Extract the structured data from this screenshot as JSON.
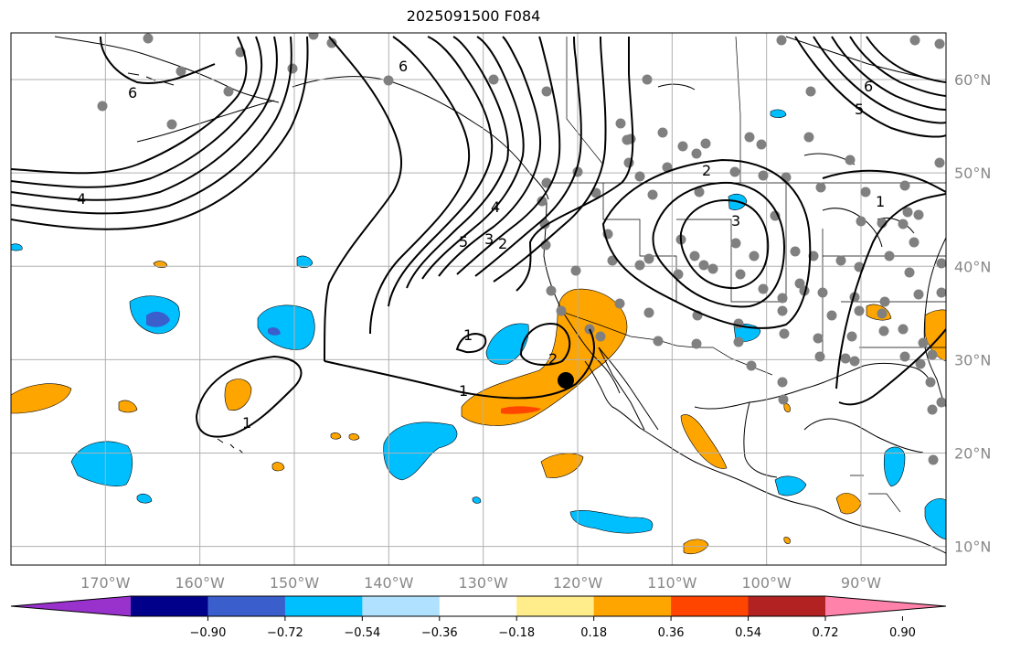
{
  "title": "2025091500 F084",
  "map": {
    "projection": "PlateCarree",
    "lon_range": [
      -180,
      -81
    ],
    "lat_range": [
      8,
      65
    ],
    "lat_ticks": [
      "10°N",
      "20°N",
      "30°N",
      "40°N",
      "50°N",
      "60°N"
    ],
    "lon_ticks": [
      "170°W",
      "160°W",
      "150°W",
      "140°W",
      "130°W",
      "120°W",
      "110°W",
      "100°W",
      "90°W"
    ],
    "grid": true,
    "contour_labels": [
      "6",
      "6",
      "4",
      "4",
      "5",
      "3",
      "2",
      "1",
      "1",
      "2",
      "1",
      "2",
      "3",
      "1",
      "6",
      "5"
    ],
    "marker": "black-dot",
    "station_color": "#808080"
  },
  "colorbar": {
    "colors": [
      "#9932cc",
      "#00008b",
      "#3a5fcd",
      "#00bfff",
      "#b0e2ff",
      "#ffffff",
      "#ffec8b",
      "#ffa500",
      "#ff4500",
      "#b22222",
      "#ff82ab"
    ],
    "tick_labels": [
      "−0.90",
      "−0.72",
      "−0.54",
      "−0.36",
      "−0.18",
      "0.18",
      "0.36",
      "0.54",
      "0.72",
      "0.90"
    ]
  }
}
